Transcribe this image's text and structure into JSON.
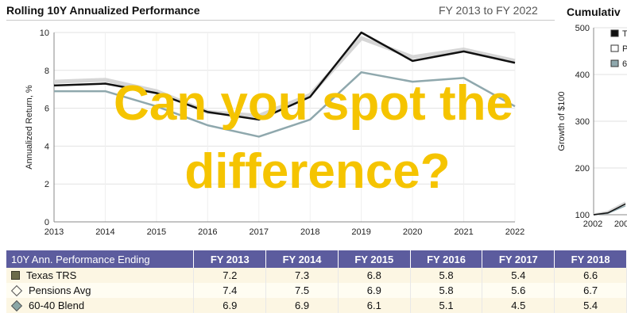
{
  "header": {
    "left_title": "Rolling 10Y Annualized Performance",
    "period": "FY 2013 to FY 2022",
    "right_title": "Cumulativ"
  },
  "overlay": {
    "line1": "Can you spot the",
    "line2": "difference?",
    "color": "#f5c400"
  },
  "chart_data": [
    {
      "type": "line",
      "title": "Rolling 10Y Annualized Performance",
      "ylabel": "Annualized Return, %",
      "xlabel": "",
      "x": [
        "2013",
        "2014",
        "2015",
        "2016",
        "2017",
        "2018",
        "2019",
        "2020",
        "2021",
        "2022"
      ],
      "ylim": [
        0,
        10
      ],
      "yticks": [
        "0",
        "2",
        "4",
        "6",
        "8",
        "10"
      ],
      "grid": true,
      "series": [
        {
          "name": "Texas TRS",
          "color": "#111111",
          "values": [
            7.2,
            7.3,
            6.8,
            5.8,
            5.4,
            6.6,
            10.0,
            8.5,
            9.0,
            8.4
          ]
        },
        {
          "name": "Pensions Avg",
          "color": "#d6d6d6",
          "values": [
            7.4,
            7.5,
            6.9,
            5.8,
            5.6,
            6.7,
            9.7,
            8.7,
            9.1,
            8.5
          ]
        },
        {
          "name": "60-40 Blend",
          "color": "#8fa8ad",
          "values": [
            6.9,
            6.9,
            6.1,
            5.1,
            4.5,
            5.4,
            7.9,
            7.4,
            7.6,
            6.1
          ]
        }
      ]
    },
    {
      "type": "line",
      "title": "Cumulativ",
      "ylabel": "Growth of $100",
      "ylim": [
        100,
        500
      ],
      "yticks": [
        "100",
        "200",
        "300",
        "400",
        "500"
      ],
      "xticks": [
        "2002",
        "200"
      ],
      "x": [
        2002,
        2003,
        2004
      ],
      "series": [
        {
          "name": "T",
          "color": "#111111",
          "values": [
            100,
            104,
            123
          ]
        },
        {
          "name": "P",
          "color": "#d6d6d6",
          "values": [
            100,
            106,
            126
          ]
        },
        {
          "name": "6",
          "color": "#8fa8ad",
          "values": [
            100,
            103,
            119
          ]
        }
      ],
      "legend": [
        "T",
        "P",
        "6"
      ]
    }
  ],
  "table": {
    "headers": [
      "10Y Ann. Performance Ending",
      "FY 2013",
      "FY 2014",
      "FY 2015",
      "FY 2016",
      "FY 2017",
      "FY 2018"
    ],
    "rows": [
      {
        "label": "Texas TRS",
        "icon": "square-icon",
        "values": [
          "7.2",
          "7.3",
          "6.8",
          "5.8",
          "5.4",
          "6.6"
        ]
      },
      {
        "label": "Pensions Avg",
        "icon": "diamond-outline-icon",
        "values": [
          "7.4",
          "7.5",
          "6.9",
          "5.8",
          "5.6",
          "6.7"
        ]
      },
      {
        "label": "60-40 Blend",
        "icon": "diamond-filled-icon",
        "values": [
          "6.9",
          "6.9",
          "6.1",
          "5.1",
          "4.5",
          "5.4"
        ]
      }
    ]
  }
}
